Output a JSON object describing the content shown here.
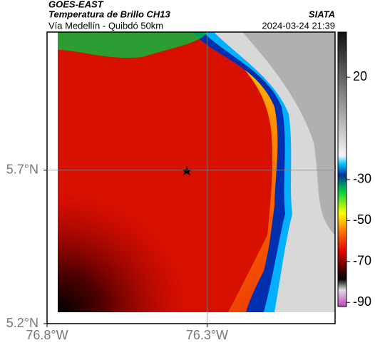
{
  "header": {
    "source": "GOES-EAST",
    "title": "Temperatura de Brillo CH13",
    "subtitle": "Vía Medellín - Quibdó 50km",
    "agency": "SIATA",
    "timestamp": "2024-03-24 21:39"
  },
  "map": {
    "xlim": [
      -76.8,
      -75.9
    ],
    "ylim": [
      5.2,
      6.15
    ],
    "xticks": [
      {
        "value": -76.8,
        "label": "76.8°W"
      },
      {
        "value": -76.3,
        "label": "76.3°W"
      }
    ],
    "yticks": [
      {
        "value": 5.2,
        "label": "5.2°N"
      },
      {
        "value": 5.7,
        "label": "5.7°N"
      }
    ]
  },
  "colorbar": {
    "lim": [
      -92,
      42
    ],
    "ticks": [
      20,
      -30,
      -50,
      -70,
      -90
    ]
  }
}
